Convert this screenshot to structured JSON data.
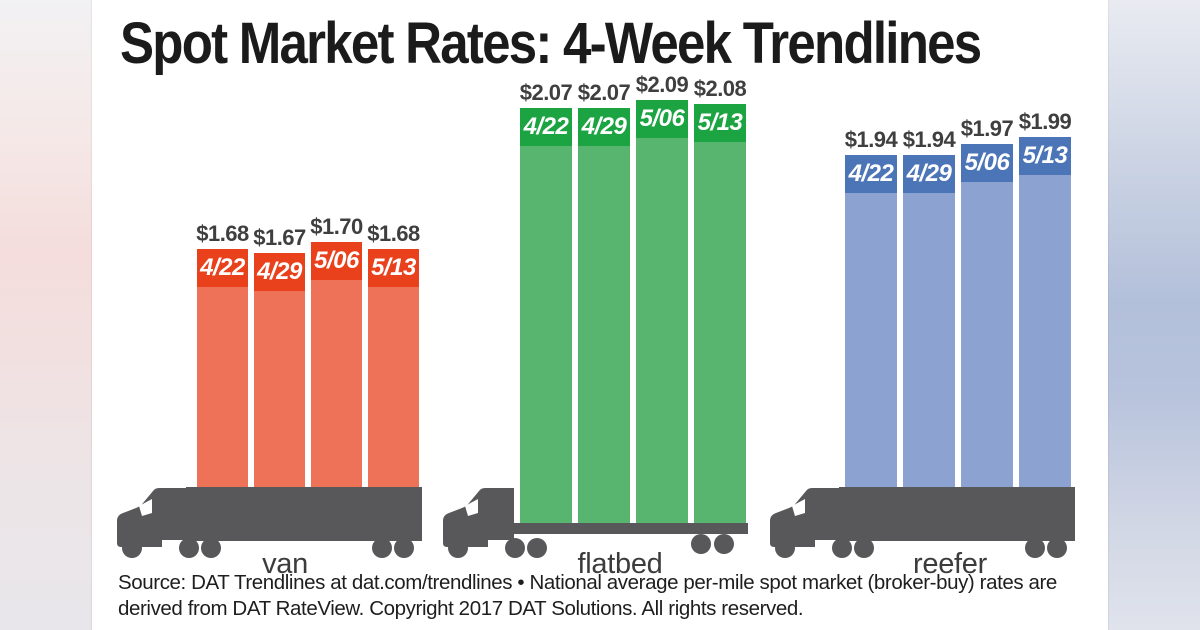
{
  "page": {
    "title": "Spot Market Rates: 4-Week Trendlines",
    "source_line1": "Source: DAT Trendlines at dat.com/trendlines • National average per-mile spot market (broker-buy) rates are",
    "source_line2": "derived from DAT RateView. Copyright 2017 DAT Solutions. All rights reserved."
  },
  "chart_data": {
    "type": "bar",
    "title": "Spot Market Rates: 4-Week Trendlines",
    "categories": [
      "4/22",
      "4/29",
      "5/06",
      "5/13"
    ],
    "value_prefix": "$",
    "axes": "none",
    "grid": false,
    "legend_position": "none",
    "series": [
      {
        "name": "van",
        "truck_style": "box-trailer",
        "values": [
          1.68,
          1.67,
          1.7,
          1.68
        ],
        "value_labels": [
          "$1.68",
          "$1.67",
          "$1.70",
          "$1.68"
        ],
        "cap_color": "#e8411b",
        "body_color": "#ee7257"
      },
      {
        "name": "flatbed",
        "truck_style": "flatbed-trailer",
        "values": [
          2.07,
          2.07,
          2.09,
          2.08
        ],
        "value_labels": [
          "$2.07",
          "$2.07",
          "$2.09",
          "$2.08"
        ],
        "cap_color": "#1ba441",
        "body_color": "#57b56f"
      },
      {
        "name": "reefer",
        "truck_style": "box-trailer",
        "values": [
          1.94,
          1.94,
          1.97,
          1.99
        ],
        "value_labels": [
          "$1.94",
          "$1.94",
          "$1.97",
          "$1.99"
        ],
        "cap_color": "#4b75b6",
        "body_color": "#8ca3d1"
      }
    ]
  },
  "colors": {
    "truck": "#58585a",
    "windshield": "#ffffff",
    "title_text": "#1b1b1b",
    "value_label": "#3f3f3f",
    "date_label": "#ffffff",
    "category_label": "#3c3c3c",
    "background": "#ffffff"
  }
}
